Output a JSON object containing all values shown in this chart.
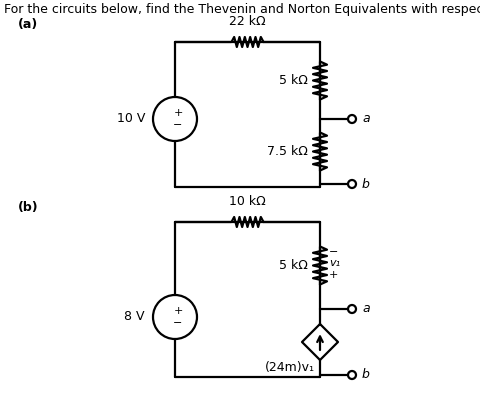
{
  "title": "For the circuits below, find the Thevenin and Norton Equivalents with respect to terminals a-b.",
  "label_a": "(a)",
  "label_b": "(b)",
  "bg_color": "#ffffff",
  "line_color": "#000000",
  "resistor_22k": "22 kΩ",
  "resistor_5k_a": "5 kΩ",
  "resistor_75k": "7.5 kΩ",
  "resistor_10k": "10 kΩ",
  "resistor_5k_b": "5 kΩ",
  "source_10v": "10 V",
  "source_8v": "8 V",
  "dep_source": "(24m)v₁",
  "label_v1": "v₁",
  "terminal_a": "a",
  "terminal_b": "b",
  "font_size_title": 9,
  "font_size_label": 9,
  "font_size_component": 9
}
